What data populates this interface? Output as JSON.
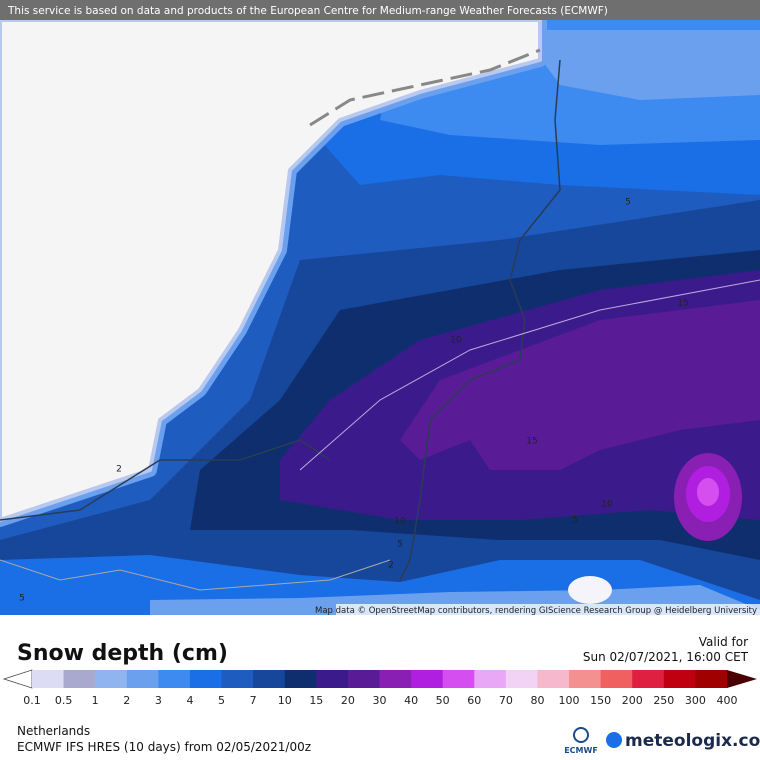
{
  "header": {
    "notice": "This service is based on data and products of the European Centre for Medium-range Weather Forecasts (ECMWF)"
  },
  "map": {
    "attribution": "Map data © OpenStreetMap contributors, rendering GIScience Research Group @ Heidelberg University",
    "contour_labels": [
      5,
      15,
      10,
      15,
      2,
      10,
      10,
      5,
      5,
      2,
      5
    ]
  },
  "legend": {
    "title": "Snow depth (cm)",
    "valid_label": "Valid for",
    "valid_time": "Sun 02/07/2021, 16:00 CET",
    "labels": [
      0.1,
      0.5,
      1,
      2,
      3,
      4,
      5,
      7,
      10,
      15,
      20,
      30,
      40,
      50,
      60,
      70,
      80,
      100,
      150,
      200,
      250,
      300,
      400
    ],
    "colors": [
      "#dcdcf5",
      "#a9a9cf",
      "#8fb4f0",
      "#6aa0ee",
      "#3d8af0",
      "#1a6ee6",
      "#1f5cc0",
      "#16479a",
      "#0f2e6e",
      "#3b1b8c",
      "#5a1b96",
      "#8a1fb4",
      "#b01ee0",
      "#d44ef0",
      "#e8a8f5",
      "#f3d3f5",
      "#f5b8cc",
      "#f59090",
      "#f06060",
      "#e02040",
      "#c00010",
      "#a00000"
    ],
    "under_color": "#ffffff",
    "over_color": "#4a0000"
  },
  "footer": {
    "region": "Netherlands",
    "model": "ECMWF IFS HRES (10 days) from 02/05/2021/00z",
    "ecmwf": "ECMWF",
    "brand": "meteologix.com"
  }
}
